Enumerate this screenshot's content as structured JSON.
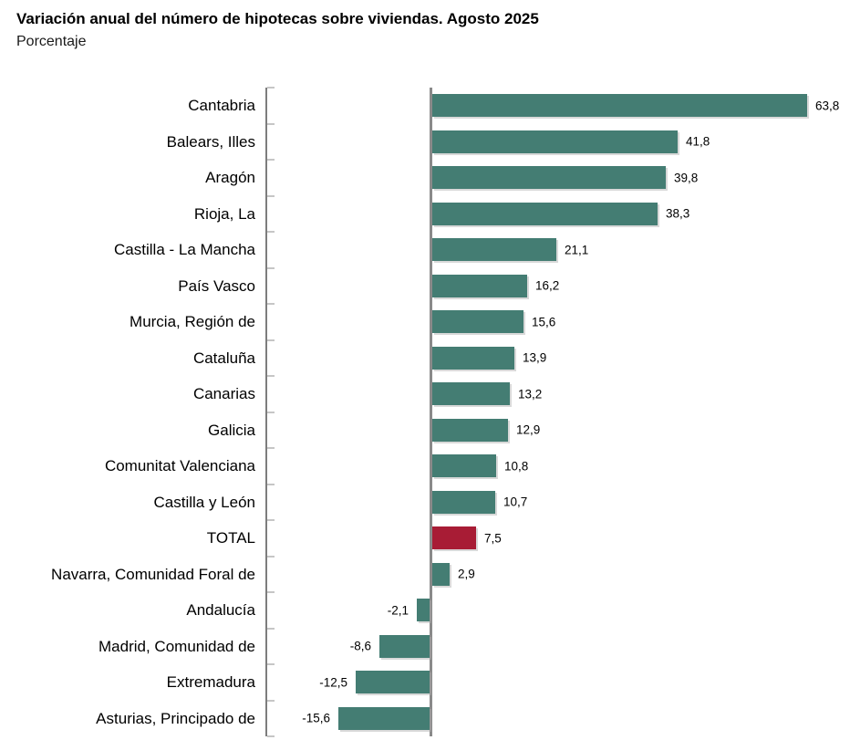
{
  "chart_data": {
    "type": "bar",
    "orientation": "horizontal",
    "title": "Variación anual del número de hipotecas sobre viviendas. Agosto 2025",
    "subtitle": "Porcentaje",
    "unit": "percent",
    "categories": [
      "Cantabria",
      "Balears, Illes",
      "Aragón",
      "Rioja, La",
      "Castilla - La Mancha",
      "País Vasco",
      "Murcia, Región de",
      "Cataluña",
      "Canarias",
      "Galicia",
      "Comunitat Valenciana",
      "Castilla y León",
      "TOTAL",
      "Navarra, Comunidad Foral de",
      "Andalucía",
      "Madrid, Comunidad de",
      "Extremadura",
      "Asturias, Principado de"
    ],
    "values": [
      63.8,
      41.8,
      39.8,
      38.3,
      21.1,
      16.2,
      15.6,
      13.9,
      13.2,
      12.9,
      10.8,
      10.7,
      7.5,
      2.9,
      -2.1,
      -8.6,
      -12.5,
      -15.6
    ],
    "value_labels": [
      "63,8",
      "41,8",
      "39,8",
      "38,3",
      "21,1",
      "16,2",
      "15,6",
      "13,9",
      "13,2",
      "12,9",
      "10,8",
      "10,7",
      "7,5",
      "2,9",
      "-2,1",
      "-8,6",
      "-12,5",
      "-15,6"
    ],
    "highlight_category": "TOTAL",
    "highlight_index": 12,
    "colors": {
      "bar": "#447D73",
      "highlight": "#A81C35",
      "axis": "#7D7D7D",
      "tick": "#C6C6C6",
      "zero_line": "#8A8A8A",
      "text": "#000000"
    },
    "x_axis": {
      "min": -28,
      "max": 71,
      "zero_line": true,
      "tick_labels_visible": false
    },
    "grid": false,
    "legend": false
  }
}
